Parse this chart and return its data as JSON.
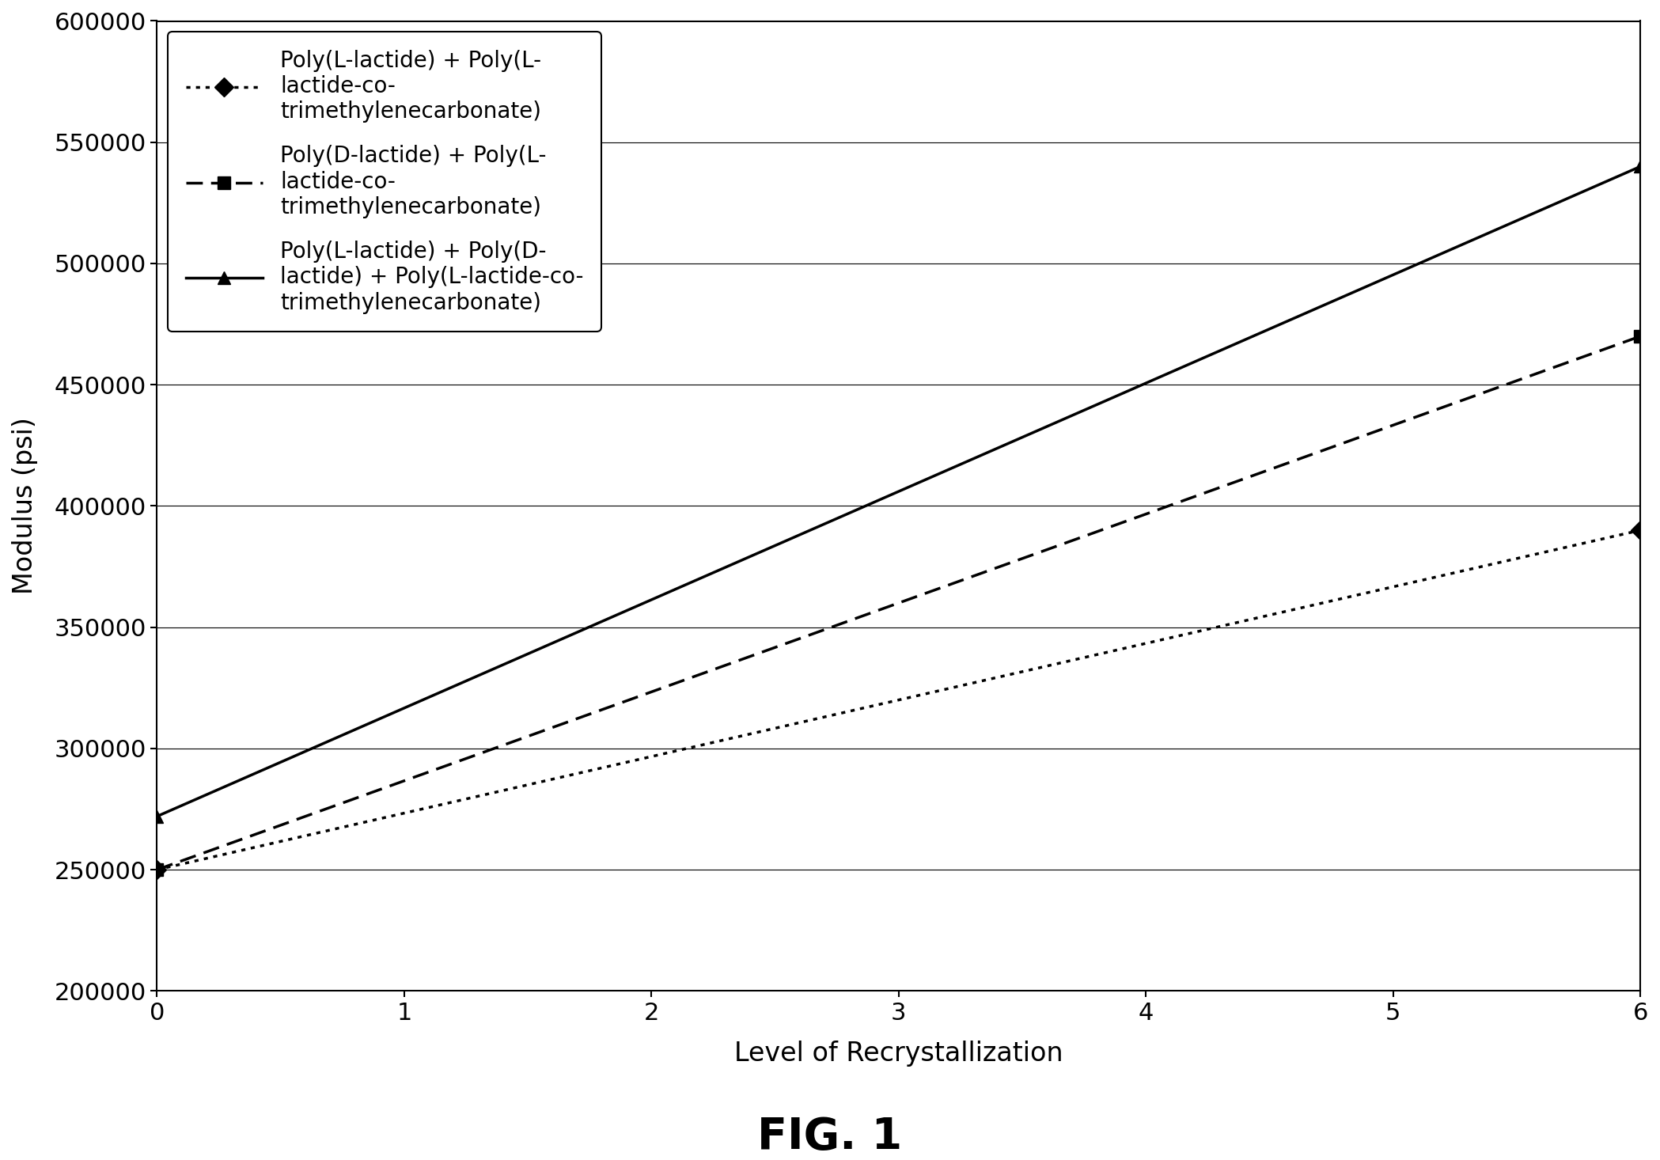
{
  "series": [
    {
      "label": "Poly(L-lactide) + Poly(L-\nlactide-co-\ntrimethylenecarbonate)",
      "x": [
        0,
        6
      ],
      "y": [
        250000,
        390000
      ],
      "linestyle": "dotted",
      "marker": "D",
      "color": "#000000",
      "linewidth": 2.5,
      "markersize": 12
    },
    {
      "label": "Poly(D-lactide) + Poly(L-\nlactide-co-\ntrimethylenecarbonate)",
      "x": [
        0,
        6
      ],
      "y": [
        250000,
        470000
      ],
      "linestyle": "dashed",
      "marker": "s",
      "color": "#000000",
      "linewidth": 2.5,
      "markersize": 12
    },
    {
      "label": "Poly(L-lactide) + Poly(D-\nlactide) + Poly(L-lactide-co-\ntrimethylenecarbonate)",
      "x": [
        0,
        6
      ],
      "y": [
        272000,
        540000
      ],
      "linestyle": "solid",
      "marker": "^",
      "color": "#000000",
      "linewidth": 2.5,
      "markersize": 12
    }
  ],
  "xlabel": "Level of Recrystallization",
  "ylabel": "Modulus (psi)",
  "xlim": [
    0,
    6
  ],
  "ylim": [
    200000,
    600000
  ],
  "yticks": [
    200000,
    250000,
    300000,
    350000,
    400000,
    450000,
    500000,
    550000,
    600000
  ],
  "xticks": [
    0,
    1,
    2,
    3,
    4,
    5,
    6
  ],
  "figure_title": "FIG. 1",
  "bg_color": "#ffffff",
  "grid_color": "#000000"
}
